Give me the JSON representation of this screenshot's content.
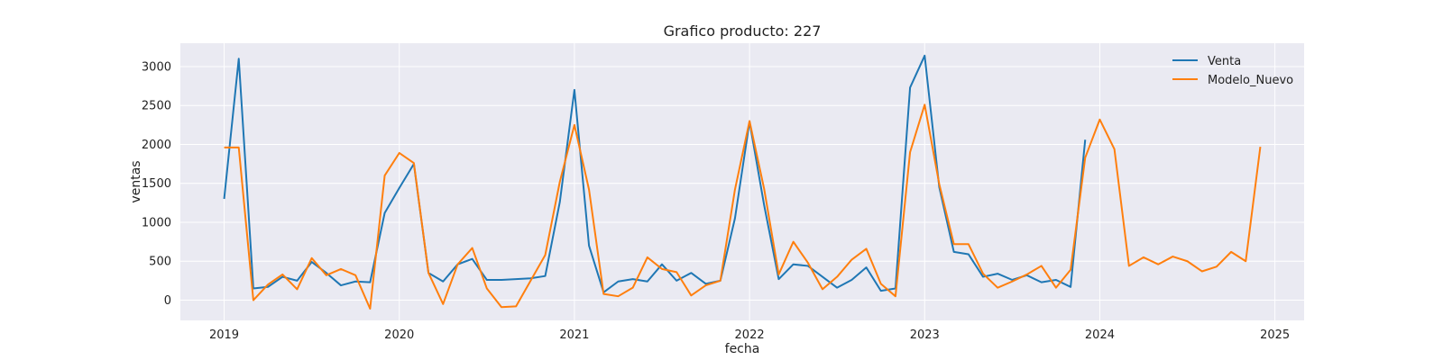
{
  "chart_data": {
    "type": "line",
    "title": "Grafico producto: 227",
    "xlabel": "fecha",
    "ylabel": "ventas",
    "x_ticks": [
      "2019",
      "2020",
      "2021",
      "2022",
      "2023",
      "2024",
      "2025"
    ],
    "y_ticks": [
      0,
      500,
      1000,
      1500,
      2000,
      2500,
      3000
    ],
    "xlim": [
      "2018-10",
      "2025-03"
    ],
    "ylim": [
      -260,
      3300
    ],
    "grid": true,
    "legend": "top-right",
    "colors": {
      "plot_bg": "#eaeaf2",
      "venta": "#1f77b4",
      "modelo": "#ff7f0e"
    },
    "series": [
      {
        "name": "Venta",
        "x": [
          "2019-01",
          "2019-02",
          "2019-03",
          "2019-04",
          "2019-05",
          "2019-06",
          "2019-07",
          "2019-08",
          "2019-09",
          "2019-10",
          "2019-11",
          "2019-12",
          "2020-01",
          "2020-02",
          "2020-03",
          "2020-04",
          "2020-05",
          "2020-06",
          "2020-07",
          "2020-08",
          "2020-09",
          "2020-10",
          "2020-11",
          "2020-12",
          "2021-01",
          "2021-02",
          "2021-03",
          "2021-04",
          "2021-05",
          "2021-06",
          "2021-07",
          "2021-08",
          "2021-09",
          "2021-10",
          "2021-11",
          "2021-12",
          "2022-01",
          "2022-02",
          "2022-03",
          "2022-04",
          "2022-05",
          "2022-06",
          "2022-07",
          "2022-08",
          "2022-09",
          "2022-10",
          "2022-11",
          "2022-12",
          "2023-01",
          "2023-02",
          "2023-03",
          "2023-04",
          "2023-05",
          "2023-06",
          "2023-07",
          "2023-08",
          "2023-09",
          "2023-10",
          "2023-11",
          "2023-12"
        ],
        "values": [
          1300,
          3100,
          150,
          170,
          300,
          250,
          490,
          350,
          190,
          240,
          230,
          1120,
          1440,
          1750,
          350,
          240,
          460,
          530,
          260,
          260,
          270,
          280,
          310,
          1260,
          2700,
          700,
          100,
          240,
          270,
          240,
          460,
          250,
          350,
          210,
          250,
          1050,
          2290,
          1220,
          270,
          460,
          440,
          300,
          160,
          260,
          420,
          120,
          150,
          2730,
          3140,
          1450,
          620,
          590,
          300,
          340,
          260,
          320,
          230,
          260,
          170,
          2060
        ]
      },
      {
        "name": "Modelo_Nuevo",
        "x": [
          "2019-01",
          "2019-02",
          "2019-03",
          "2019-04",
          "2019-05",
          "2019-06",
          "2019-07",
          "2019-08",
          "2019-09",
          "2019-10",
          "2019-11",
          "2019-12",
          "2020-01",
          "2020-02",
          "2020-03",
          "2020-04",
          "2020-05",
          "2020-06",
          "2020-07",
          "2020-08",
          "2020-09",
          "2020-10",
          "2020-11",
          "2020-12",
          "2021-01",
          "2021-02",
          "2021-03",
          "2021-04",
          "2021-05",
          "2021-06",
          "2021-07",
          "2021-08",
          "2021-09",
          "2021-10",
          "2021-11",
          "2021-12",
          "2022-01",
          "2022-02",
          "2022-03",
          "2022-04",
          "2022-05",
          "2022-06",
          "2022-07",
          "2022-08",
          "2022-09",
          "2022-10",
          "2022-11",
          "2022-12",
          "2023-01",
          "2023-02",
          "2023-03",
          "2023-04",
          "2023-05",
          "2023-06",
          "2023-07",
          "2023-08",
          "2023-09",
          "2023-10",
          "2023-11",
          "2023-12",
          "2024-01",
          "2024-02",
          "2024-03",
          "2024-04",
          "2024-05",
          "2024-06",
          "2024-07",
          "2024-08",
          "2024-09",
          "2024-10",
          "2024-11",
          "2024-12"
        ],
        "values": [
          1960,
          1960,
          0,
          200,
          330,
          140,
          540,
          320,
          400,
          320,
          -110,
          1600,
          1890,
          1760,
          350,
          -50,
          460,
          670,
          150,
          -90,
          -80,
          250,
          580,
          1520,
          2250,
          1420,
          80,
          50,
          160,
          550,
          400,
          360,
          60,
          190,
          250,
          1420,
          2300,
          1430,
          330,
          750,
          480,
          140,
          300,
          520,
          660,
          210,
          50,
          1900,
          2510,
          1490,
          720,
          720,
          340,
          160,
          240,
          330,
          440,
          160,
          390,
          1830,
          2320,
          1940,
          440,
          550,
          460,
          560,
          500,
          370,
          430,
          620,
          500,
          1970
        ]
      }
    ]
  }
}
